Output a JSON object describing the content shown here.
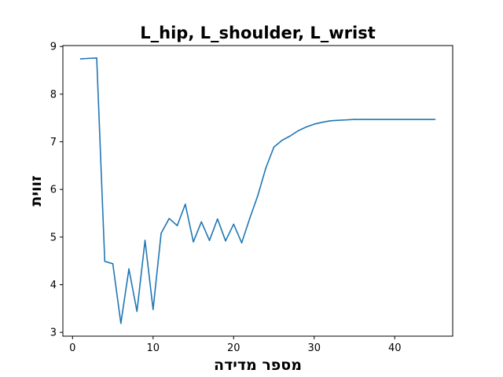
{
  "chart_data": {
    "type": "line",
    "title": "L_hip, L_shoulder, L_wrist",
    "xlabel": "מספר מדידה",
    "ylabel": "זווית",
    "xlim": [
      -1.2,
      47.2
    ],
    "ylim": [
      2.92,
      9.02
    ],
    "xticks": [
      0,
      10,
      20,
      30,
      40
    ],
    "yticks": [
      3,
      4,
      5,
      6,
      7,
      8,
      9
    ],
    "grid": false,
    "series": [
      {
        "color": "#1f77b4",
        "x": [
          1,
          2,
          3,
          4,
          5,
          6,
          7,
          8,
          9,
          10,
          11,
          12,
          13,
          14,
          15,
          16,
          17,
          18,
          19,
          20,
          21,
          22,
          23,
          24,
          25,
          26,
          27,
          28,
          29,
          30,
          31,
          32,
          33,
          34,
          35,
          36,
          37,
          38,
          39,
          40,
          41,
          42,
          43,
          44,
          45
        ],
        "values": [
          8.74,
          8.75,
          8.76,
          4.49,
          4.44,
          3.19,
          4.33,
          3.44,
          4.93,
          3.48,
          5.08,
          5.39,
          5.24,
          5.69,
          4.9,
          5.32,
          4.93,
          5.38,
          4.92,
          5.27,
          4.88,
          5.39,
          5.87,
          6.45,
          6.89,
          7.03,
          7.12,
          7.23,
          7.31,
          7.37,
          7.41,
          7.44,
          7.45,
          7.46,
          7.47,
          7.47,
          7.47,
          7.47,
          7.47,
          7.47,
          7.47,
          7.47,
          7.47,
          7.47,
          7.47
        ]
      }
    ]
  }
}
